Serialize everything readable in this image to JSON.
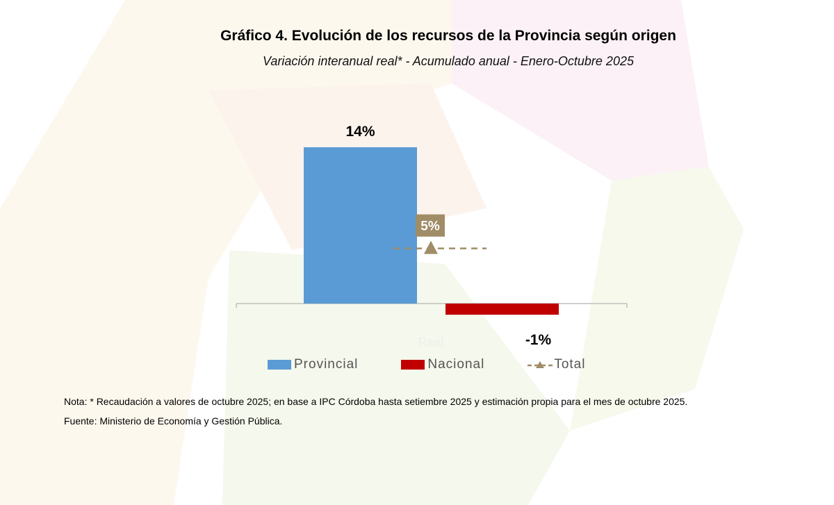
{
  "chart_data": {
    "type": "bar",
    "title": "Gráfico 4. Evolución de los recursos de la Provincia según origen",
    "subtitle": "Variación interanual real* - Acumulado anual - Enero-Octubre 2025",
    "series": [
      {
        "name": "Provincial",
        "value": 14,
        "label": "14%",
        "color": "#5b9bd5"
      },
      {
        "name": "Nacional",
        "value": -1,
        "label": "-1%",
        "color": "#c00000"
      }
    ],
    "total": {
      "name": "Total",
      "value": 5,
      "label": "5%",
      "color": "#a08c67"
    },
    "axis_label": "Real",
    "legend": [
      "Provincial",
      "Nacional",
      "Total"
    ],
    "legend_position": "bottom"
  },
  "note": "Nota: * Recaudación a valores de octubre 2025; en base a IPC Córdoba hasta setiembre 2025 y estimación propia para el mes de octubre 2025.",
  "source": "Fuente: Ministerio de Economía y Gestión Pública."
}
